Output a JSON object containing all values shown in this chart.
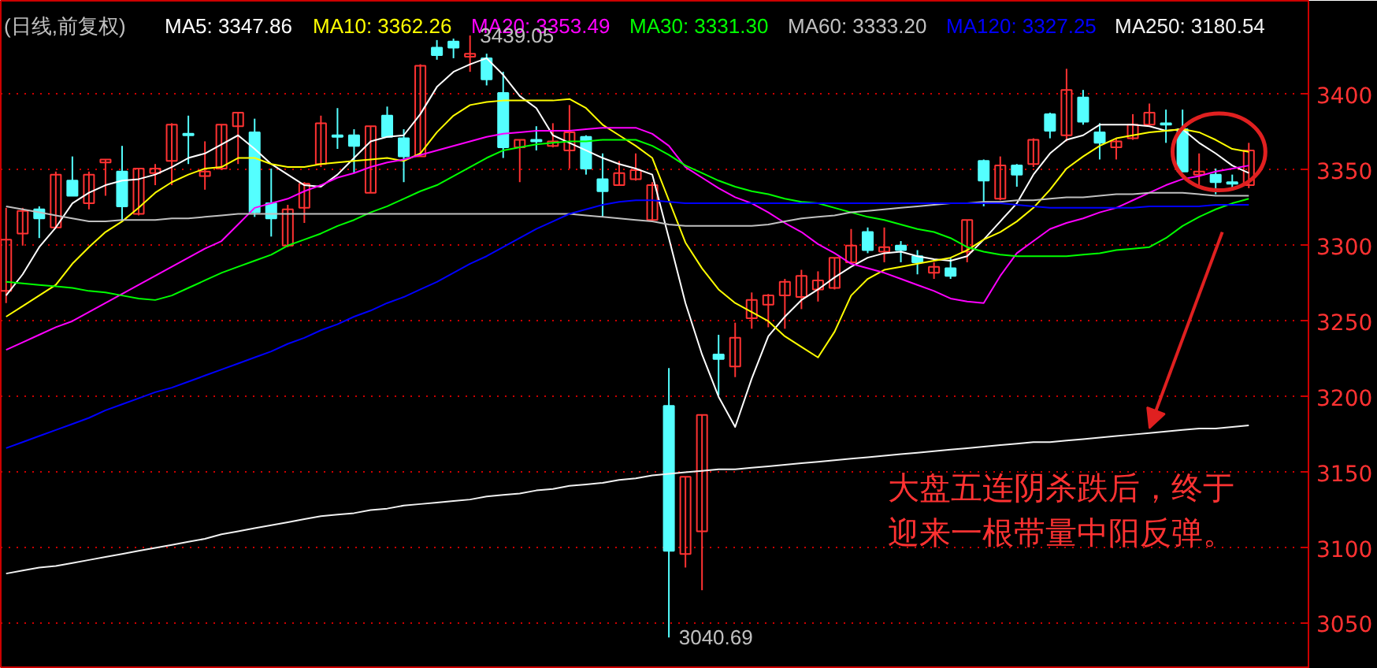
{
  "chart_data": {
    "type": "candlestick",
    "title": "(日线,前复权)",
    "legend": "top",
    "grid": "y",
    "categories": [
      null,
      null,
      null,
      null,
      null,
      null,
      null,
      null,
      null,
      null,
      null,
      null,
      null,
      null,
      null,
      null,
      null,
      null,
      null,
      null,
      null,
      null,
      null,
      null,
      null,
      null,
      null,
      null,
      null,
      null,
      null,
      null,
      null,
      null,
      null,
      null,
      null,
      null,
      null,
      null,
      null,
      null,
      null,
      null,
      null,
      null,
      null,
      null,
      null,
      null,
      null,
      null,
      null,
      null,
      null,
      null,
      null,
      null,
      null,
      null,
      null,
      null,
      null,
      null,
      null,
      null,
      null,
      null,
      null,
      null,
      null,
      null,
      null,
      null,
      null,
      null
    ],
    "ylim": [
      3020,
      3462
    ],
    "yticks": [
      3050,
      3100,
      3150,
      3200,
      3250,
      3300,
      3350,
      3400
    ],
    "ohlc": [
      [
        3270,
        3325,
        3262,
        3304
      ],
      [
        3308,
        3325,
        3300,
        3323
      ],
      [
        3324,
        3326,
        3305,
        3318
      ],
      [
        3312,
        3349,
        3312,
        3347
      ],
      [
        3343,
        3359,
        3333,
        3333
      ],
      [
        3328,
        3349,
        3324,
        3347
      ],
      [
        3355,
        3357,
        3333,
        3357
      ],
      [
        3349,
        3366,
        3316,
        3326
      ],
      [
        3321,
        3351,
        3320,
        3351
      ],
      [
        3348,
        3354,
        3340,
        3351
      ],
      [
        3356,
        3381,
        3340,
        3380
      ],
      [
        3374,
        3386,
        3354,
        3373
      ],
      [
        3346,
        3369,
        3337,
        3349
      ],
      [
        3351,
        3380,
        3350,
        3380
      ],
      [
        3379,
        3388,
        3354,
        3388
      ],
      [
        3375,
        3384,
        3319,
        3322
      ],
      [
        3328,
        3351,
        3306,
        3318
      ],
      [
        3300,
        3327,
        3299,
        3324
      ],
      [
        3325,
        3342,
        3315,
        3341
      ],
      [
        3354,
        3386,
        3352,
        3381
      ],
      [
        3373,
        3391,
        3364,
        3372
      ],
      [
        3373,
        3377,
        3348,
        3366
      ],
      [
        3335,
        3379,
        3335,
        3379
      ],
      [
        3386,
        3392,
        3372,
        3372
      ],
      [
        3371,
        3377,
        3342,
        3359
      ],
      [
        3359,
        3420,
        3359,
        3419
      ],
      [
        3431,
        3436,
        3423,
        3426
      ],
      [
        3435,
        3437,
        3424,
        3431
      ],
      [
        3425,
        3439.05,
        3415,
        3427
      ],
      [
        3424,
        3427,
        3406,
        3410
      ],
      [
        3401,
        3415,
        3358,
        3365
      ],
      [
        3365,
        3370,
        3342,
        3370
      ],
      [
        3370,
        3379,
        3363,
        3369
      ],
      [
        3366,
        3381,
        3365,
        3369
      ],
      [
        3363,
        3393,
        3351,
        3375
      ],
      [
        3372,
        3373,
        3347,
        3351
      ],
      [
        3344,
        3361,
        3319,
        3336
      ],
      [
        3340,
        3356,
        3340,
        3348
      ],
      [
        3344,
        3361,
        3343,
        3350
      ],
      [
        3317,
        3342,
        3317,
        3340
      ],
      [
        3194,
        3219,
        3040.69,
        3098
      ],
      [
        3096,
        3147,
        3087,
        3147
      ],
      [
        3111,
        3188,
        3072,
        3188
      ],
      [
        3228,
        3241,
        3201,
        3225
      ],
      [
        3220,
        3249,
        3213,
        3239
      ],
      [
        3252,
        3269,
        3245,
        3264
      ],
      [
        3261,
        3268,
        3246,
        3267
      ],
      [
        3267,
        3278,
        3245,
        3276
      ],
      [
        3266,
        3284,
        3258,
        3280
      ],
      [
        3271,
        3283,
        3263,
        3277
      ],
      [
        3272,
        3292,
        3271,
        3292
      ],
      [
        3289,
        3311,
        3289,
        3300
      ],
      [
        3309,
        3312,
        3295,
        3297
      ],
      [
        3296,
        3312,
        3289,
        3299
      ],
      [
        3300,
        3303,
        3289,
        3297
      ],
      [
        3293,
        3297,
        3281,
        3289
      ],
      [
        3282,
        3289,
        3278,
        3286
      ],
      [
        3285,
        3292,
        3278,
        3280
      ],
      [
        3296,
        3317,
        3289,
        3317
      ],
      [
        3356,
        3357,
        3326,
        3343
      ],
      [
        3331,
        3359,
        3330,
        3353
      ],
      [
        3353,
        3354,
        3339,
        3347
      ],
      [
        3354,
        3371,
        3352,
        3370
      ],
      [
        3387,
        3388,
        3371,
        3376
      ],
      [
        3373,
        3417,
        3369,
        3403
      ],
      [
        3398,
        3403,
        3380,
        3382
      ],
      [
        3375,
        3381,
        3357,
        3368
      ],
      [
        3365,
        3371,
        3357,
        3369
      ],
      [
        3371,
        3387,
        3370,
        3380
      ],
      [
        3380,
        3394,
        3380,
        3388
      ],
      [
        3381,
        3390,
        3368,
        3380
      ],
      [
        3377,
        3390,
        3349,
        3349
      ],
      [
        3347,
        3361,
        3338,
        3349
      ],
      [
        3347,
        3351,
        3334,
        3342
      ],
      [
        3342,
        3347,
        3337,
        3341
      ],
      [
        3340,
        3368,
        3338,
        3363
      ]
    ],
    "colors": [
      "#ff3232",
      "#ff3232",
      "#54ffff",
      "#ff3232",
      "#54ffff",
      "#ff3232",
      "#ff3232",
      "#54ffff",
      "#ff3232",
      "#ff3232",
      "#ff3232",
      "#54ffff",
      "#ff3232",
      "#ff3232",
      "#ff3232",
      "#54ffff",
      "#54ffff",
      "#ff3232",
      "#ff3232",
      "#ff3232",
      "#54ffff",
      "#54ffff",
      "#ff3232",
      "#54ffff",
      "#54ffff",
      "#ff3232",
      "#54ffff",
      "#54ffff",
      "#ff3232",
      "#54ffff",
      "#54ffff",
      "#ff3232",
      "#54ffff",
      "#ff3232",
      "#ff3232",
      "#54ffff",
      "#54ffff",
      "#ff3232",
      "#ff3232",
      "#ff3232",
      "#54ffff",
      "#ff3232",
      "#ff3232",
      "#54ffff",
      "#ff3232",
      "#ff3232",
      "#ff3232",
      "#ff3232",
      "#ff3232",
      "#ff3232",
      "#ff3232",
      "#ff3232",
      "#54ffff",
      "#ff3232",
      "#54ffff",
      "#54ffff",
      "#ff3232",
      "#54ffff",
      "#ff3232",
      "#54ffff",
      "#ff3232",
      "#54ffff",
      "#ff3232",
      "#54ffff",
      "#ff3232",
      "#54ffff",
      "#54ffff",
      "#ff3232",
      "#ff3232",
      "#ff3232",
      "#54ffff",
      "#54ffff",
      "#ff3232",
      "#54ffff",
      "#54ffff",
      "#ff3232"
    ],
    "series": [
      {
        "type": "line",
        "name": "MA5: 3347.86",
        "color": "#ffffff",
        "values": [
          3267,
          3281,
          3299,
          3312,
          3328,
          3335,
          3340,
          3343,
          3344,
          3347,
          3352,
          3358,
          3361,
          3367,
          3373,
          3364,
          3354,
          3347,
          3340,
          3339,
          3347,
          3358,
          3369,
          3372,
          3373,
          3387,
          3405,
          3415,
          3420,
          3424,
          3413,
          3399,
          3391,
          3373,
          3368,
          3363,
          3358,
          3354,
          3351,
          3347,
          3305,
          3262,
          3228,
          3200,
          3180,
          3212,
          3240,
          3253,
          3264,
          3271,
          3279,
          3286,
          3292,
          3295,
          3296,
          3293,
          3291,
          3290,
          3293,
          3304,
          3316,
          3328,
          3347,
          3361,
          3370,
          3373,
          3380,
          3380,
          3380,
          3379,
          3376,
          3377,
          3368,
          3361,
          3353,
          3348
        ]
      },
      {
        "type": "line",
        "name": "MA10: 3362.26",
        "color": "#ffff00",
        "values": [
          3253,
          3260,
          3267,
          3274,
          3288,
          3299,
          3309,
          3316,
          3325,
          3335,
          3342,
          3347,
          3351,
          3352,
          3358,
          3358,
          3354,
          3352,
          3352,
          3354,
          3355,
          3356,
          3357,
          3358,
          3356,
          3361,
          3375,
          3386,
          3393,
          3395,
          3396,
          3396,
          3396,
          3396,
          3397,
          3391,
          3380,
          3373,
          3366,
          3358,
          3330,
          3302,
          3285,
          3271,
          3262,
          3256,
          3250,
          3240,
          3233,
          3226,
          3243,
          3267,
          3278,
          3284,
          3286,
          3288,
          3290,
          3292,
          3297,
          3304,
          3309,
          3316,
          3325,
          3337,
          3351,
          3359,
          3366,
          3371,
          3373,
          3375,
          3376,
          3377,
          3375,
          3370,
          3364,
          3362
        ]
      },
      {
        "type": "line",
        "name": "MA20: 3353.49",
        "color": "#ff00ff",
        "values": [
          3231,
          3236,
          3241,
          3246,
          3250,
          3256,
          3262,
          3268,
          3274,
          3280,
          3286,
          3292,
          3298,
          3303,
          3314,
          3325,
          3328,
          3331,
          3336,
          3340,
          3345,
          3348,
          3352,
          3355,
          3357,
          3360,
          3363,
          3366,
          3369,
          3372,
          3374,
          3375,
          3376,
          3376,
          3376,
          3377,
          3378,
          3378,
          3378,
          3374,
          3366,
          3352,
          3345,
          3338,
          3332,
          3328,
          3322,
          3315,
          3309,
          3301,
          3295,
          3288,
          3285,
          3282,
          3278,
          3274,
          3270,
          3265,
          3263,
          3262,
          3280,
          3295,
          3303,
          3311,
          3315,
          3318,
          3322,
          3325,
          3330,
          3335,
          3340,
          3344,
          3346,
          3349,
          3351,
          3353
        ]
      },
      {
        "type": "line",
        "name": "MA30: 3331.30",
        "color": "#00ff00",
        "values": [
          3276,
          3275,
          3274,
          3273,
          3272,
          3270,
          3269,
          3267,
          3265,
          3264,
          3267,
          3272,
          3277,
          3282,
          3286,
          3290,
          3294,
          3300,
          3304,
          3308,
          3313,
          3317,
          3322,
          3326,
          3331,
          3336,
          3340,
          3346,
          3352,
          3358,
          3363,
          3365,
          3367,
          3368,
          3369,
          3369,
          3370,
          3370,
          3370,
          3366,
          3360,
          3353,
          3348,
          3343,
          3339,
          3336,
          3334,
          3331,
          3329,
          3328,
          3325,
          3322,
          3319,
          3317,
          3314,
          3311,
          3309,
          3305,
          3299,
          3296,
          3294,
          3293,
          3293,
          3293,
          3293,
          3294,
          3295,
          3297,
          3298,
          3299,
          3305,
          3313,
          3319,
          3324,
          3328,
          3331
        ]
      },
      {
        "type": "line",
        "name": "MA60: 3333.20",
        "color": "#c0c0c0",
        "values": [
          3326,
          3324,
          3322,
          3320,
          3318,
          3316,
          3316,
          3317,
          3317,
          3317,
          3318,
          3318,
          3319,
          3320,
          3321,
          3321,
          3321,
          3321,
          3321,
          3321,
          3321,
          3321,
          3321,
          3321,
          3321,
          3321,
          3321,
          3321,
          3321,
          3321,
          3321,
          3321,
          3321,
          3321,
          3321,
          3320,
          3319,
          3318,
          3317,
          3316,
          3314,
          3313,
          3313,
          3313,
          3313,
          3313,
          3314,
          3316,
          3318,
          3319,
          3320,
          3322,
          3323,
          3324,
          3325,
          3326,
          3327,
          3328,
          3328,
          3329,
          3329,
          3330,
          3330,
          3331,
          3332,
          3332,
          3333,
          3334,
          3334,
          3335,
          3335,
          3335,
          3334,
          3333,
          3333,
          3333
        ]
      },
      {
        "type": "line",
        "name": "MA120: 3327.25",
        "color": "#0000ff",
        "values": [
          3166,
          3170,
          3174,
          3178,
          3182,
          3186,
          3191,
          3195,
          3199,
          3203,
          3206,
          3210,
          3214,
          3218,
          3222,
          3226,
          3230,
          3235,
          3239,
          3244,
          3248,
          3253,
          3257,
          3262,
          3266,
          3271,
          3276,
          3282,
          3288,
          3293,
          3299,
          3305,
          3311,
          3316,
          3321,
          3324,
          3327,
          3329,
          3330,
          3330,
          3329,
          3328,
          3328,
          3328,
          3328,
          3328,
          3328,
          3328,
          3328,
          3328,
          3328,
          3328,
          3328,
          3328,
          3328,
          3328,
          3328,
          3328,
          3328,
          3328,
          3328,
          3327,
          3326,
          3325,
          3325,
          3325,
          3325,
          3325,
          3325,
          3326,
          3326,
          3326,
          3326,
          3327,
          3327,
          3327
        ]
      },
      {
        "type": "line",
        "name": "MA250: 3180.54",
        "color": "#f2f2f2",
        "values": [
          3083,
          3085,
          3087,
          3088,
          3090,
          3092,
          3094,
          3096,
          3098,
          3100,
          3102,
          3104,
          3106,
          3109,
          3111,
          3113,
          3115,
          3117,
          3119,
          3121,
          3122,
          3123,
          3125,
          3126,
          3128,
          3129,
          3130,
          3131,
          3132,
          3134,
          3135,
          3136,
          3138,
          3139,
          3141,
          3142,
          3143,
          3145,
          3146,
          3148,
          3149,
          3150,
          3151,
          3152,
          3152,
          3153,
          3154,
          3155,
          3156,
          3157,
          3158,
          3159,
          3160,
          3161,
          3162,
          3163,
          3164,
          3165,
          3166,
          3167,
          3168,
          3169,
          3170,
          3170,
          3171,
          3172,
          3173,
          3174,
          3175,
          3176,
          3177,
          3178,
          3179,
          3179,
          3180,
          3181
        ]
      }
    ],
    "annotations": [
      "3439.05",
      "3040.69",
      "大盘五连阴杀跌后，终于迎来一根带量中阳反弹。"
    ]
  }
}
